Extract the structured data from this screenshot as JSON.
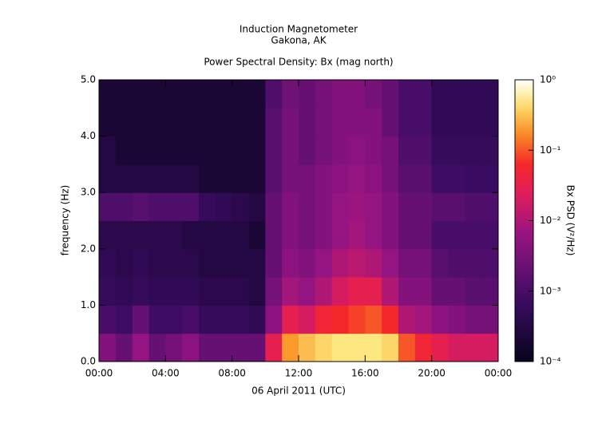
{
  "chart_data": {
    "type": "heatmap",
    "title": "Induction Magnetometer",
    "subtitle": "Gakona, AK",
    "plot_title": "Power Spectral Density: Bx (mag north)",
    "x_label": "06 April 2011 (UTC)",
    "y_label": "frequency (Hz)",
    "colorbar_label": "Bx PSD (V²/Hz)",
    "xlim": [
      0,
      24
    ],
    "xticks": [
      {
        "value": 0,
        "label": "00:00"
      },
      {
        "value": 4,
        "label": "04:00"
      },
      {
        "value": 8,
        "label": "08:00"
      },
      {
        "value": 12,
        "label": "12:00"
      },
      {
        "value": 16,
        "label": "16:00"
      },
      {
        "value": 20,
        "label": "20:00"
      },
      {
        "value": 24,
        "label": "00:00"
      }
    ],
    "ylim": [
      0,
      5
    ],
    "yticks": [
      {
        "value": 0,
        "label": "0.0"
      },
      {
        "value": 1,
        "label": "1.0"
      },
      {
        "value": 2,
        "label": "2.0"
      },
      {
        "value": 3,
        "label": "3.0"
      },
      {
        "value": 4,
        "label": "4.0"
      },
      {
        "value": 5,
        "label": "5.0"
      }
    ],
    "color_scale": "log",
    "clim": [
      0.0001,
      1
    ],
    "cticks": [
      {
        "value": 1,
        "label": "10⁰"
      },
      {
        "value": 0.1,
        "label": "10⁻¹"
      },
      {
        "value": 0.01,
        "label": "10⁻²"
      },
      {
        "value": 0.001,
        "label": "10⁻³"
      },
      {
        "value": 0.0001,
        "label": "10⁻⁴"
      }
    ],
    "xbins": [
      0,
      1,
      2,
      3,
      4,
      5,
      6,
      7,
      8,
      9,
      10,
      11,
      12,
      13,
      14,
      15,
      16,
      17,
      18,
      19,
      20,
      21,
      22,
      23,
      24
    ],
    "ybins": [
      0,
      0.5,
      1,
      1.5,
      2,
      2.5,
      3,
      3.5,
      4,
      4.5,
      5
    ],
    "values": [
      [
        0.004,
        0.002,
        0.006,
        0.002,
        0.003,
        0.005,
        0.002,
        0.002,
        0.002,
        0.002,
        0.03,
        0.2,
        0.3,
        0.4,
        0.5,
        0.5,
        0.5,
        0.4,
        0.1,
        0.05,
        0.03,
        0.02,
        0.02,
        0.02
      ],
      [
        0.001,
        0.0008,
        0.002,
        0.0008,
        0.0008,
        0.001,
        0.0006,
        0.0006,
        0.0006,
        0.0005,
        0.005,
        0.03,
        0.02,
        0.05,
        0.06,
        0.08,
        0.1,
        0.06,
        0.01,
        0.008,
        0.005,
        0.004,
        0.003,
        0.003
      ],
      [
        0.0006,
        0.0005,
        0.0006,
        0.0005,
        0.0005,
        0.0005,
        0.0004,
        0.0004,
        0.0004,
        0.0003,
        0.003,
        0.008,
        0.006,
        0.01,
        0.02,
        0.03,
        0.03,
        0.01,
        0.004,
        0.004,
        0.002,
        0.002,
        0.0015,
        0.0015
      ],
      [
        0.0005,
        0.0004,
        0.0005,
        0.0004,
        0.0004,
        0.0004,
        0.0003,
        0.0003,
        0.0003,
        0.0003,
        0.002,
        0.005,
        0.004,
        0.006,
        0.01,
        0.012,
        0.01,
        0.006,
        0.003,
        0.003,
        0.0015,
        0.0012,
        0.0012,
        0.0012
      ],
      [
        0.0004,
        0.0004,
        0.0004,
        0.0004,
        0.0004,
        0.0003,
        0.0003,
        0.0003,
        0.0003,
        0.0002,
        0.002,
        0.004,
        0.003,
        0.004,
        0.006,
        0.008,
        0.006,
        0.004,
        0.002,
        0.002,
        0.001,
        0.001,
        0.001,
        0.001
      ],
      [
        0.0012,
        0.0012,
        0.0015,
        0.0012,
        0.0012,
        0.0012,
        0.0006,
        0.0005,
        0.0004,
        0.0003,
        0.002,
        0.004,
        0.003,
        0.004,
        0.006,
        0.007,
        0.006,
        0.004,
        0.002,
        0.002,
        0.0015,
        0.0015,
        0.0012,
        0.0012
      ],
      [
        0.0003,
        0.0003,
        0.0003,
        0.0003,
        0.0003,
        0.0003,
        0.0002,
        0.0002,
        0.0002,
        0.0002,
        0.0015,
        0.003,
        0.003,
        0.004,
        0.005,
        0.006,
        0.005,
        0.003,
        0.0015,
        0.0015,
        0.0008,
        0.0008,
        0.0007,
        0.0007
      ],
      [
        0.0003,
        0.0002,
        0.0002,
        0.0002,
        0.0002,
        0.0002,
        0.0002,
        0.0002,
        0.0002,
        0.0002,
        0.0015,
        0.003,
        0.002,
        0.003,
        0.004,
        0.005,
        0.004,
        0.003,
        0.0012,
        0.0012,
        0.0006,
        0.0006,
        0.0006,
        0.0006
      ],
      [
        0.0002,
        0.0002,
        0.0002,
        0.0002,
        0.0002,
        0.0002,
        0.0002,
        0.0002,
        0.0002,
        0.0002,
        0.0015,
        0.003,
        0.002,
        0.003,
        0.004,
        0.004,
        0.004,
        0.002,
        0.001,
        0.001,
        0.0005,
        0.0005,
        0.0005,
        0.0005
      ],
      [
        0.0002,
        0.0002,
        0.0002,
        0.0002,
        0.0002,
        0.0002,
        0.0002,
        0.0002,
        0.0002,
        0.0002,
        0.0012,
        0.0025,
        0.002,
        0.003,
        0.004,
        0.004,
        0.003,
        0.002,
        0.001,
        0.001,
        0.0005,
        0.0005,
        0.0005,
        0.0005
      ]
    ]
  }
}
